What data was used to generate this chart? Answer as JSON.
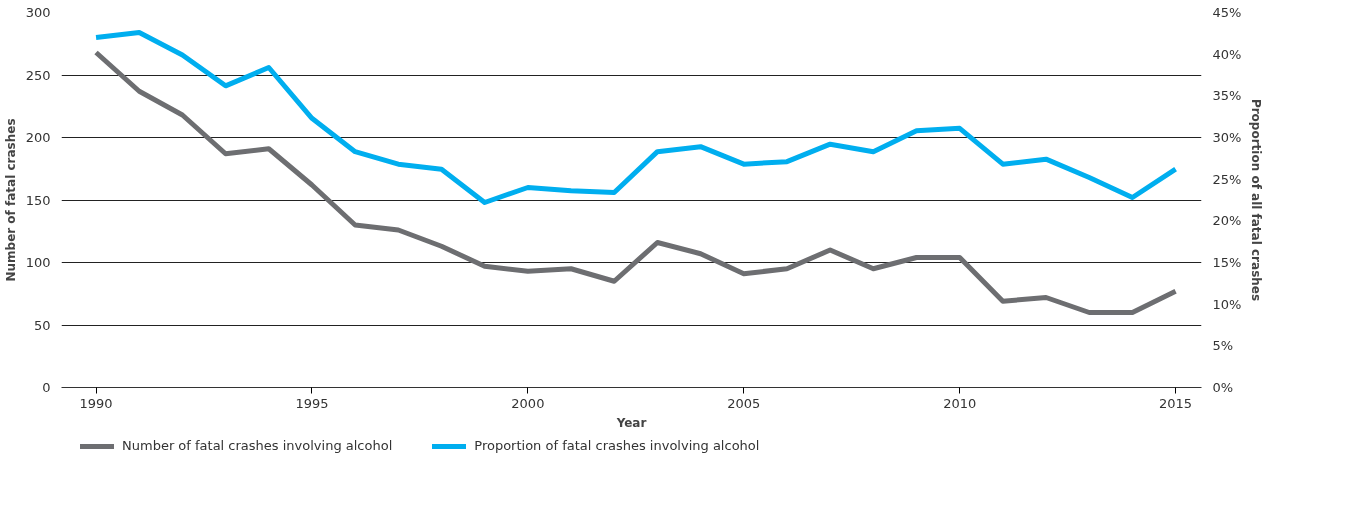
{
  "chart_data": {
    "type": "line",
    "xlabel": "Year",
    "ylabel": "Number of fatal crashes",
    "y2label": "Proportion of all fatal crashes",
    "x": [
      1990,
      1991,
      1992,
      1993,
      1994,
      1995,
      1996,
      1997,
      1998,
      1999,
      2000,
      2001,
      2002,
      2003,
      2004,
      2005,
      2006,
      2007,
      2008,
      2009,
      2010,
      2011,
      2012,
      2013,
      2014,
      2015
    ],
    "series": [
      {
        "name": "Number of fatal crashes involving alcohol",
        "color": "#6d6e71",
        "values": [
          268,
          237,
          218,
          187,
          191,
          162,
          130,
          126,
          113,
          97,
          93,
          95,
          85,
          116,
          107,
          91,
          95,
          110,
          95,
          104,
          104,
          69,
          72,
          60,
          60,
          77
        ]
      },
      {
        "name": "Proportion of fatal crashes involving alcohol",
        "color": "#00aeef",
        "axis": "y2",
        "values": [
          42.0,
          42.6,
          39.9,
          36.2,
          38.4,
          32.3,
          28.3,
          26.8,
          26.2,
          22.2,
          24.0,
          23.6,
          23.4,
          28.3,
          28.9,
          26.8,
          27.1,
          29.2,
          28.3,
          30.8,
          31.1,
          26.8,
          27.4,
          25.2,
          22.8,
          26.2
        ]
      }
    ],
    "xlim": [
      1989.2,
      2015.6
    ],
    "xticks": [
      1990,
      1995,
      2000,
      2005,
      2010,
      2015
    ],
    "ylim": [
      0,
      300
    ],
    "yticks": [
      0,
      50,
      100,
      150,
      200,
      250,
      300
    ],
    "y2lim": [
      0,
      45
    ],
    "y2ticks": [
      {
        "value": 0,
        "label": "0%"
      },
      {
        "value": 5,
        "label": "5%"
      },
      {
        "value": 10,
        "label": "10%"
      },
      {
        "value": 15,
        "label": "15%"
      },
      {
        "value": 20,
        "label": "20%"
      },
      {
        "value": 25,
        "label": "25%"
      },
      {
        "value": 30,
        "label": "30%"
      },
      {
        "value": 35,
        "label": "35%"
      },
      {
        "value": 40,
        "label": "40%"
      },
      {
        "value": 45,
        "label": "45%"
      }
    ],
    "grid": "y",
    "legend": "bottom left",
    "marker": "none",
    "line_style": "solid"
  }
}
